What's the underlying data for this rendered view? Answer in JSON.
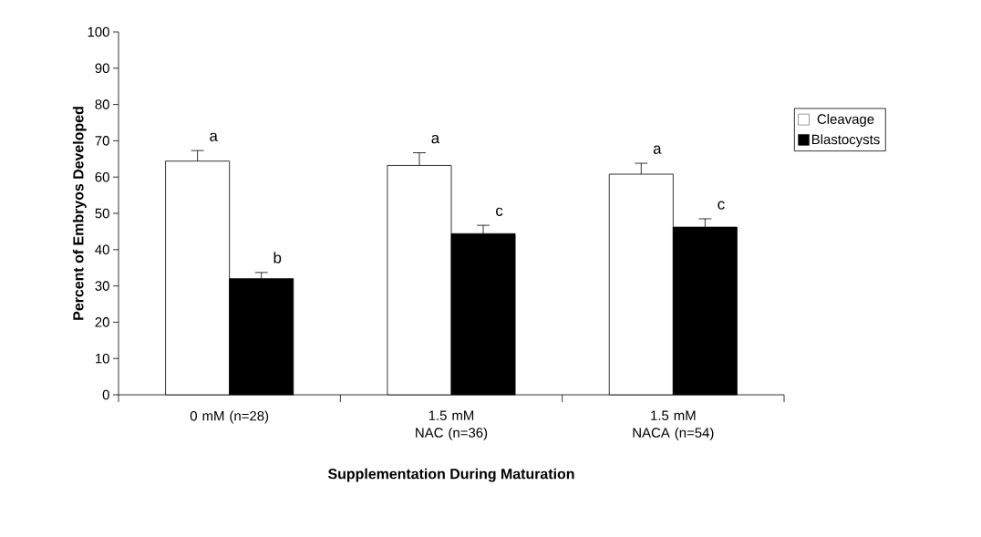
{
  "chart_data": {
    "type": "bar",
    "xlabel": "Supplementation During Maturation",
    "ylabel": "Percent of Embryos Developed",
    "categories": [
      "0 mM (n=28)",
      "1.5 mM NAC (n=36)",
      "1.5 mM NACA (n=54)"
    ],
    "series": [
      {
        "name": "Cleavage",
        "color": "#ffffff",
        "values": [
          64.4,
          63.2,
          60.8
        ],
        "errors": [
          [
            64.4,
            67.3
          ],
          [
            63.2,
            66.7
          ],
          [
            60.8,
            63.8
          ]
        ]
      },
      {
        "name": "Blastocysts",
        "color": "#000000",
        "values": [
          32.0,
          44.4,
          46.2
        ],
        "errors": [
          [
            32.0,
            33.7
          ],
          [
            44.4,
            46.7
          ],
          [
            46.2,
            48.5
          ]
        ]
      }
    ],
    "annotations": [
      "a",
      "b",
      "a",
      "c",
      "a",
      "c"
    ],
    "ylim": [
      0,
      100
    ],
    "yticks": [
      0,
      10,
      20,
      30,
      40,
      50,
      60,
      70,
      80,
      90,
      100
    ],
    "grid": false,
    "legend": "right"
  }
}
